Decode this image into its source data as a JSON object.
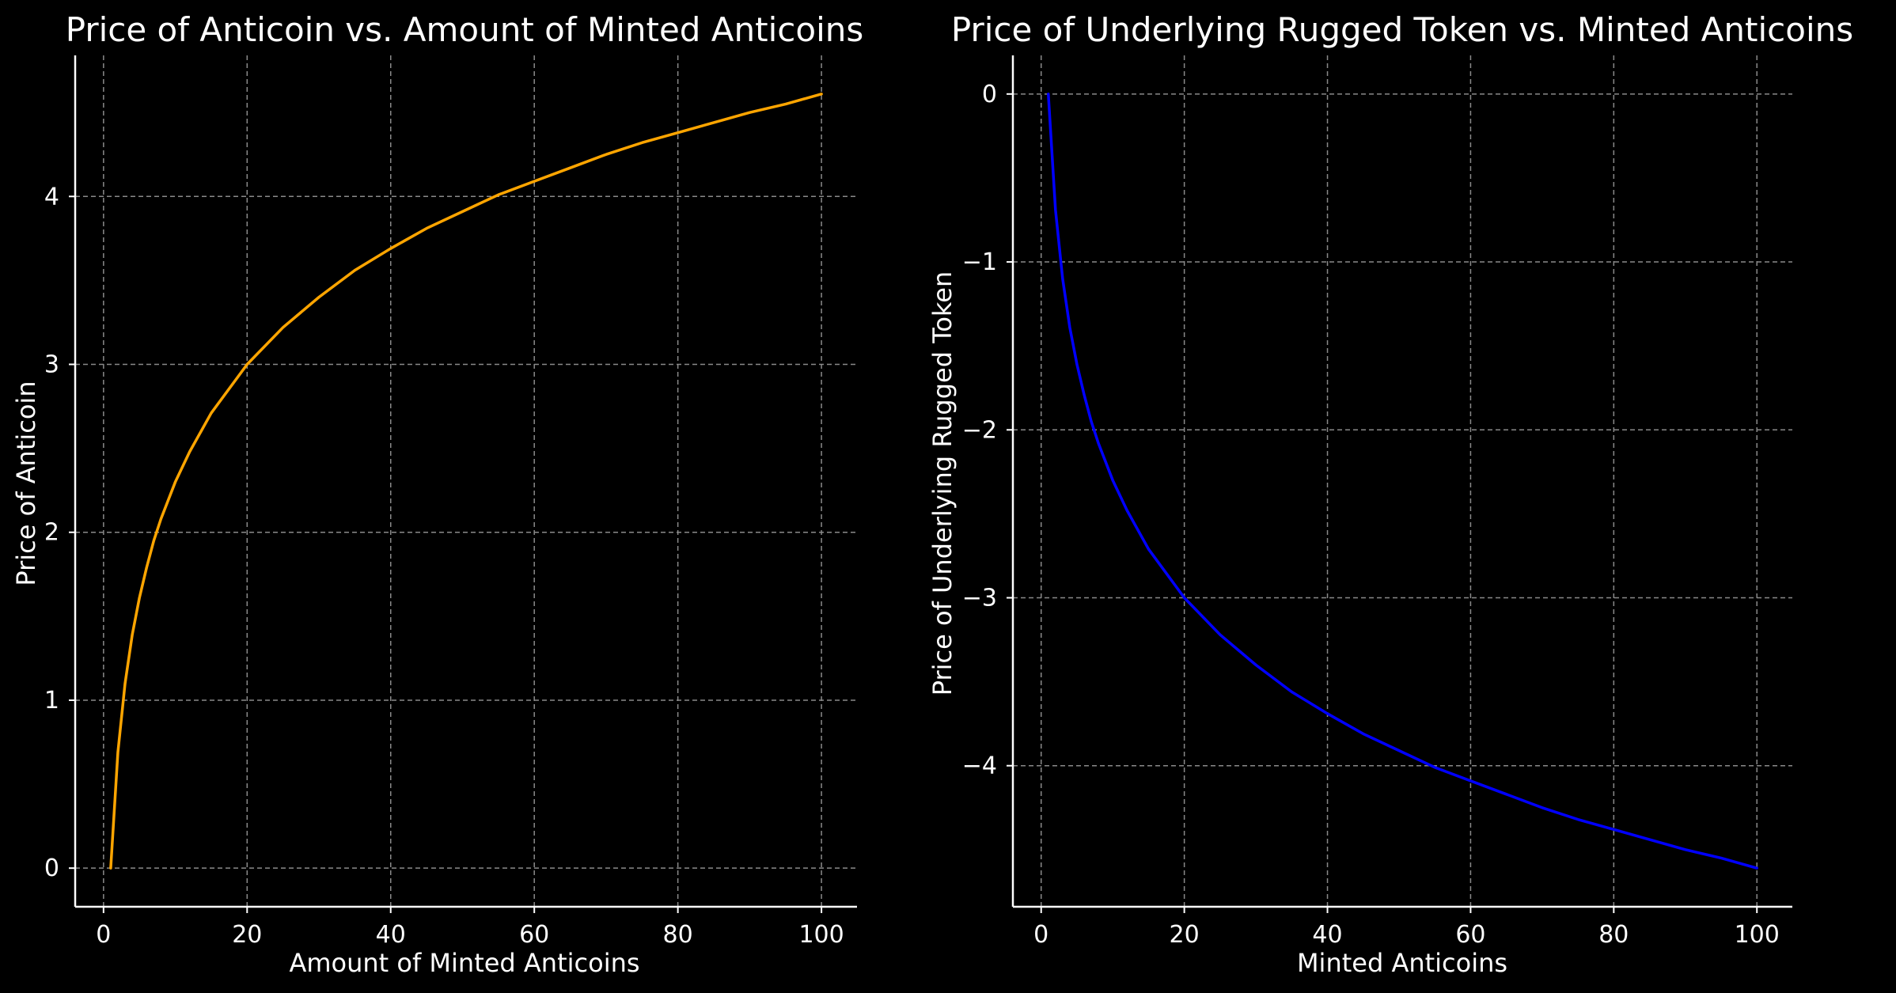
{
  "chart_data": [
    {
      "type": "line",
      "title": "Price of Anticoin vs. Amount of Minted Anticoins",
      "xlabel": "Amount of Minted Anticoins",
      "ylabel": "Price of Anticoin",
      "xlim": [
        -3.95,
        104.95
      ],
      "ylim": [
        -0.23,
        4.84
      ],
      "xticks": [
        0,
        20,
        40,
        60,
        80,
        100
      ],
      "yticks": [
        0,
        1,
        2,
        3,
        4
      ],
      "xtick_labels": [
        "0",
        "20",
        "40",
        "60",
        "80",
        "100"
      ],
      "ytick_labels": [
        "0",
        "1",
        "2",
        "3",
        "4"
      ],
      "grid": true,
      "color": "#FFA500",
      "series": [
        {
          "x": [
            1,
            2,
            3,
            4,
            5,
            6,
            7,
            8,
            10,
            12,
            15,
            20,
            25,
            30,
            35,
            40,
            45,
            50,
            55,
            60,
            65,
            70,
            75,
            80,
            85,
            90,
            95,
            100
          ],
          "y": [
            0,
            0.69,
            1.1,
            1.39,
            1.61,
            1.79,
            1.95,
            2.08,
            2.3,
            2.48,
            2.71,
            3.0,
            3.22,
            3.4,
            3.56,
            3.69,
            3.81,
            3.91,
            4.01,
            4.09,
            4.17,
            4.25,
            4.32,
            4.38,
            4.44,
            4.5,
            4.55,
            4.61
          ]
        }
      ]
    },
    {
      "type": "line",
      "title": "Price of Underlying Rugged Token vs. Minted Anticoins",
      "xlabel": "Minted Anticoins",
      "ylabel": "Price of Underlying Rugged Token",
      "xlim": [
        -3.95,
        104.95
      ],
      "ylim": [
        -4.84,
        0.23
      ],
      "xticks": [
        0,
        20,
        40,
        60,
        80,
        100
      ],
      "yticks": [
        0,
        -1,
        -2,
        -3,
        -4
      ],
      "xtick_labels": [
        "0",
        "20",
        "40",
        "60",
        "80",
        "100"
      ],
      "ytick_labels": [
        "0",
        "−1",
        "−2",
        "−3",
        "−4"
      ],
      "grid": true,
      "color": "#0000FF",
      "series": [
        {
          "x": [
            1,
            2,
            3,
            4,
            5,
            6,
            7,
            8,
            10,
            12,
            15,
            20,
            25,
            30,
            35,
            40,
            45,
            50,
            55,
            60,
            65,
            70,
            75,
            80,
            85,
            90,
            95,
            100
          ],
          "y": [
            0,
            -0.69,
            -1.1,
            -1.39,
            -1.61,
            -1.79,
            -1.95,
            -2.08,
            -2.3,
            -2.48,
            -2.71,
            -3.0,
            -3.22,
            -3.4,
            -3.56,
            -3.69,
            -3.81,
            -3.91,
            -4.01,
            -4.09,
            -4.17,
            -4.25,
            -4.32,
            -4.38,
            -4.44,
            -4.5,
            -4.55,
            -4.61
          ]
        }
      ]
    }
  ]
}
